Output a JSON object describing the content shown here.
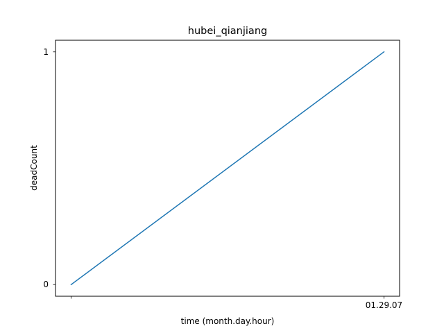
{
  "chart_data": {
    "type": "line",
    "title": "hubei_qianjiang",
    "xlabel": "time (month.day.hour)",
    "ylabel": "deadCount",
    "categories": [
      "",
      "01.29.07"
    ],
    "series": [
      {
        "values": [
          0,
          1
        ],
        "color": "#1f77b4"
      }
    ],
    "yticks": [
      0,
      1
    ],
    "ylim": [
      -0.05,
      1.05
    ],
    "grid": false,
    "legend": "none"
  }
}
